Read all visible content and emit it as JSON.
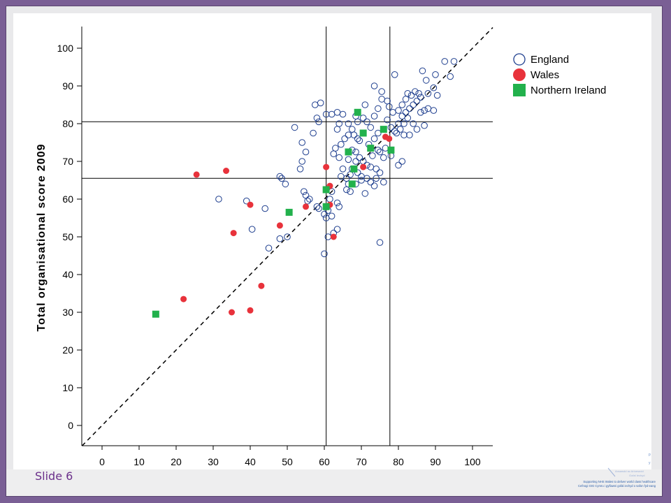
{
  "slide": {
    "label": "Slide 6",
    "footer_lines": [
      "Supporting NHS Wales to deliver world class healthcare",
      "Cefnogi GIG Cymru i gyflawni gofal iechyd o safon fyd-eang"
    ]
  },
  "colors": {
    "england": "#1f3f8f",
    "wales": "#e8323b",
    "northern_ireland": "#22b14c",
    "frame": "#7a5f95",
    "slide_label": "#6a2f8a"
  },
  "chart_data": {
    "type": "scatter",
    "title": "",
    "xlabel": "",
    "ylabel": "Total organisational score 2009",
    "xlim": [
      -5,
      106
    ],
    "ylim": [
      -5,
      106
    ],
    "x_ticks": [
      0,
      10,
      20,
      30,
      40,
      50,
      60,
      70,
      80,
      90,
      100
    ],
    "y_ticks": [
      0,
      10,
      20,
      30,
      40,
      50,
      60,
      70,
      80,
      90,
      100
    ],
    "grid": false,
    "legend_position": "top-right",
    "reference_lines": {
      "vertical": [
        60.5,
        77.7
      ],
      "horizontal": [
        65.5,
        80.5
      ],
      "diagonal": "y = x (dashed)"
    },
    "series": [
      {
        "name": "England",
        "marker": "open-circle",
        "points": [
          [
            60,
            45.5
          ],
          [
            61,
            50
          ],
          [
            62.5,
            51
          ],
          [
            63.5,
            52
          ],
          [
            75,
            48.5
          ],
          [
            45,
            47
          ],
          [
            48,
            49.5
          ],
          [
            50,
            50
          ],
          [
            40.5,
            52
          ],
          [
            31.5,
            60
          ],
          [
            39,
            59.5
          ],
          [
            44,
            57.5
          ],
          [
            48,
            66
          ],
          [
            48.5,
            65.5
          ],
          [
            49.5,
            64
          ],
          [
            53.5,
            68
          ],
          [
            54,
            70
          ],
          [
            55,
            72.5
          ],
          [
            57,
            77.5
          ],
          [
            54,
            75
          ],
          [
            52,
            79
          ],
          [
            58,
            81.5
          ],
          [
            57.5,
            85
          ],
          [
            59,
            85.5
          ],
          [
            60.5,
            82.5
          ],
          [
            58.5,
            80.5
          ],
          [
            54.5,
            62
          ],
          [
            55,
            61
          ],
          [
            56,
            60
          ],
          [
            55.5,
            59.5
          ],
          [
            58,
            58
          ],
          [
            58.5,
            57.5
          ],
          [
            60,
            56
          ],
          [
            61,
            57
          ],
          [
            62,
            55.5
          ],
          [
            60.5,
            55
          ],
          [
            61.5,
            60
          ],
          [
            62,
            62
          ],
          [
            63.5,
            59
          ],
          [
            64,
            58
          ],
          [
            66,
            62.5
          ],
          [
            66.5,
            64
          ],
          [
            67,
            62
          ],
          [
            64.5,
            66
          ],
          [
            65,
            68
          ],
          [
            66.5,
            70.5
          ],
          [
            64,
            71
          ],
          [
            62.5,
            72
          ],
          [
            63,
            73.5
          ],
          [
            64.5,
            74.5
          ],
          [
            65.5,
            76
          ],
          [
            63.5,
            78.5
          ],
          [
            64,
            80
          ],
          [
            62,
            82.5
          ],
          [
            63.5,
            83
          ],
          [
            65,
            82.5
          ],
          [
            66.5,
            80
          ],
          [
            67.5,
            78.5
          ],
          [
            66.5,
            77
          ],
          [
            68,
            77
          ],
          [
            69,
            76
          ],
          [
            69.5,
            75.5
          ],
          [
            67.5,
            73
          ],
          [
            68.5,
            72.5
          ],
          [
            69.5,
            71
          ],
          [
            70.5,
            70
          ],
          [
            71.5,
            69
          ],
          [
            72.5,
            68.5
          ],
          [
            70,
            66
          ],
          [
            71.5,
            65.5
          ],
          [
            72.5,
            64.5
          ],
          [
            71,
            61.5
          ],
          [
            73.5,
            63.5
          ],
          [
            74,
            68
          ],
          [
            73,
            71.5
          ],
          [
            74.5,
            73
          ],
          [
            72,
            74.5
          ],
          [
            73.5,
            76
          ],
          [
            74.5,
            77.5
          ],
          [
            72.5,
            79
          ],
          [
            71.5,
            80.5
          ],
          [
            70.5,
            81.5
          ],
          [
            69,
            80.5
          ],
          [
            68.5,
            82
          ],
          [
            71,
            85
          ],
          [
            73.5,
            82
          ],
          [
            74.5,
            84
          ],
          [
            75.5,
            86.5
          ],
          [
            75.5,
            88.5
          ],
          [
            73.5,
            90
          ],
          [
            77,
            86
          ],
          [
            77.5,
            84.5
          ],
          [
            78.5,
            83
          ],
          [
            77,
            81
          ],
          [
            78,
            79
          ],
          [
            79,
            78
          ],
          [
            80.5,
            78.5
          ],
          [
            81.5,
            80
          ],
          [
            82.5,
            81.5
          ],
          [
            80,
            83.5
          ],
          [
            81,
            85
          ],
          [
            82,
            86.5
          ],
          [
            82.5,
            88
          ],
          [
            83.5,
            87.5
          ],
          [
            84.5,
            88.5
          ],
          [
            85.5,
            88
          ],
          [
            86,
            87
          ],
          [
            85,
            86
          ],
          [
            84,
            85
          ],
          [
            83,
            84
          ],
          [
            82,
            83
          ],
          [
            81,
            82
          ],
          [
            80,
            80
          ],
          [
            79.5,
            77.5
          ],
          [
            81.5,
            77
          ],
          [
            83,
            77
          ],
          [
            85,
            78.5
          ],
          [
            84,
            80
          ],
          [
            86,
            83
          ],
          [
            87,
            83.5
          ],
          [
            88,
            84
          ],
          [
            89.5,
            83.5
          ],
          [
            87,
            79.5
          ],
          [
            88,
            88
          ],
          [
            89.5,
            89.5
          ],
          [
            90,
            93
          ],
          [
            87.5,
            91.5
          ],
          [
            86.5,
            94
          ],
          [
            79,
            93
          ],
          [
            92.5,
            96.5
          ],
          [
            95,
            96.5
          ],
          [
            94,
            92.5
          ],
          [
            90.5,
            87.5
          ],
          [
            76.5,
            73.5
          ],
          [
            75,
            72.5
          ],
          [
            76,
            71
          ],
          [
            78,
            71.5
          ],
          [
            80,
            69
          ],
          [
            81,
            70
          ],
          [
            68.5,
            70
          ],
          [
            67.5,
            68
          ],
          [
            69,
            67
          ],
          [
            70,
            65
          ],
          [
            67,
            66.5
          ],
          [
            66,
            65.5
          ],
          [
            68.5,
            64
          ],
          [
            75,
            67
          ],
          [
            74,
            65.5
          ],
          [
            76,
            64.5
          ]
        ]
      },
      {
        "name": "Wales",
        "marker": "filled-circle",
        "points": [
          [
            25.5,
            66.5
          ],
          [
            33.5,
            67.5
          ],
          [
            22,
            33.5
          ],
          [
            35,
            30
          ],
          [
            35.5,
            51
          ],
          [
            40,
            30.5
          ],
          [
            40,
            58.5
          ],
          [
            43,
            37
          ],
          [
            48,
            53
          ],
          [
            55,
            58
          ],
          [
            60.5,
            68.5
          ],
          [
            61.5,
            58.5
          ],
          [
            61.5,
            63.5
          ],
          [
            62.5,
            50
          ],
          [
            70.5,
            68.5
          ],
          [
            76.5,
            76.5
          ],
          [
            77.5,
            76
          ]
        ]
      },
      {
        "name": "Northern Ireland",
        "marker": "filled-square",
        "points": [
          [
            14.5,
            29.5
          ],
          [
            50.5,
            56.5
          ],
          [
            60.5,
            58
          ],
          [
            60.5,
            62.5
          ],
          [
            66.5,
            72.5
          ],
          [
            67.5,
            64
          ],
          [
            68,
            68
          ],
          [
            69,
            83
          ],
          [
            70.5,
            77.5
          ],
          [
            72.5,
            73.5
          ],
          [
            76,
            78.5
          ],
          [
            78,
            73
          ]
        ]
      }
    ]
  }
}
